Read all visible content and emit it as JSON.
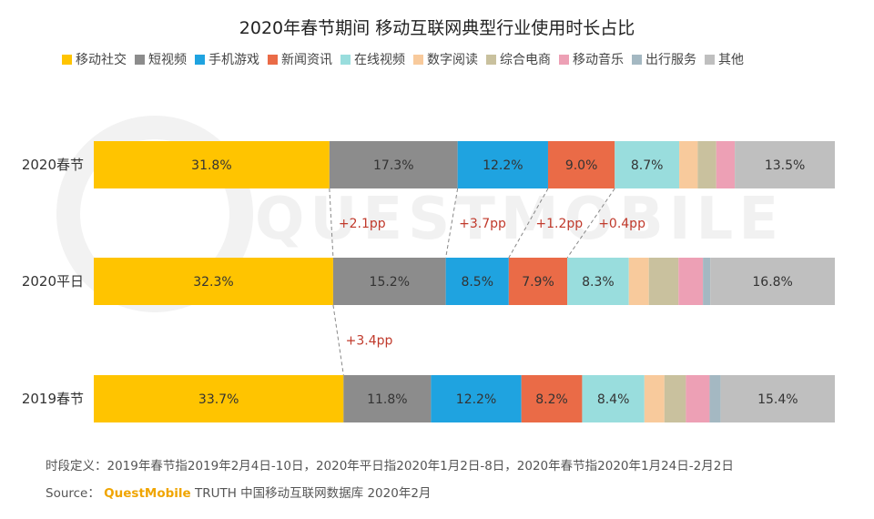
{
  "colors": {
    "移动社交": "#FFC400",
    "短视频": "#8C8C8C",
    "手机游戏": "#1FA3E0",
    "新闻资讯": "#EA6B47",
    "在线视频": "#99DDDD",
    "数字阅读": "#F8CA9C",
    "综合电商": "#C9C19E",
    "移动音乐": "#EDA0B5",
    "出行服务": "#A4B8C2",
    "其他": "#BFBFBF",
    "diff": "#C0392B"
  },
  "footnote": {
    "note": "时段定义：2019年春节指2019年2月4日-10日，2020年平日指2020年1月2日-8日，2020年春节指2020年1月24日-2月2日",
    "source_prefix": "Source：",
    "brand": "QuestMobile",
    "source_suffix": " TRUTH 中国移动互联网数据库 2020年2月"
  },
  "watermark": "QUESTMOBILE",
  "chart_data": {
    "type": "bar",
    "orientation": "horizontal",
    "stacked": "percent",
    "title": "2020年春节期间 移动互联网典型行业使用时长占比",
    "legend_position": "top",
    "categories": [
      "2020春节",
      "2020平日",
      "2019春节"
    ],
    "series": [
      {
        "name": "移动社交",
        "values": [
          31.8,
          32.3,
          33.7
        ],
        "labels": [
          "31.8%",
          "32.3%",
          "33.7%"
        ]
      },
      {
        "name": "短视频",
        "values": [
          17.3,
          15.2,
          11.8
        ],
        "labels": [
          "17.3%",
          "15.2%",
          "11.8%"
        ]
      },
      {
        "name": "手机游戏",
        "values": [
          12.2,
          8.5,
          12.2
        ],
        "labels": [
          "12.2%",
          "8.5%",
          "12.2%"
        ]
      },
      {
        "name": "新闻资讯",
        "values": [
          9.0,
          7.9,
          8.2
        ],
        "labels": [
          "9.0%",
          "7.9%",
          "8.2%"
        ]
      },
      {
        "name": "在线视频",
        "values": [
          8.7,
          8.3,
          8.4
        ],
        "labels": [
          "8.7%",
          "8.3%",
          "8.4%"
        ]
      },
      {
        "name": "数字阅读",
        "values": [
          2.5,
          2.7,
          2.7
        ],
        "labels": [
          "",
          "",
          ""
        ]
      },
      {
        "name": "综合电商",
        "values": [
          2.5,
          4.0,
          2.9
        ],
        "labels": [
          "",
          "",
          ""
        ]
      },
      {
        "name": "移动音乐",
        "values": [
          2.5,
          3.3,
          3.2
        ],
        "labels": [
          "",
          "",
          ""
        ]
      },
      {
        "name": "出行服务",
        "values": [
          0.0,
          1.0,
          1.5
        ],
        "labels": [
          "",
          "",
          ""
        ]
      },
      {
        "name": "其他",
        "values": [
          13.5,
          16.8,
          15.4
        ],
        "labels": [
          "13.5%",
          "16.8%",
          "15.4%"
        ]
      }
    ],
    "differences": [
      {
        "text": "+2.1pp",
        "series": "短视频",
        "from": "2020平日",
        "to": "2020春节"
      },
      {
        "text": "+3.7pp",
        "series": "手机游戏",
        "from": "2020平日",
        "to": "2020春节"
      },
      {
        "text": "+1.2pp",
        "series": "新闻资讯",
        "from": "2020平日",
        "to": "2020春节"
      },
      {
        "text": "+0.4pp",
        "series": "在线视频",
        "from": "2020平日",
        "to": "2020春节"
      },
      {
        "text": "+3.4pp",
        "series": "短视频",
        "from": "2019春节",
        "to": "2020平日"
      }
    ]
  }
}
